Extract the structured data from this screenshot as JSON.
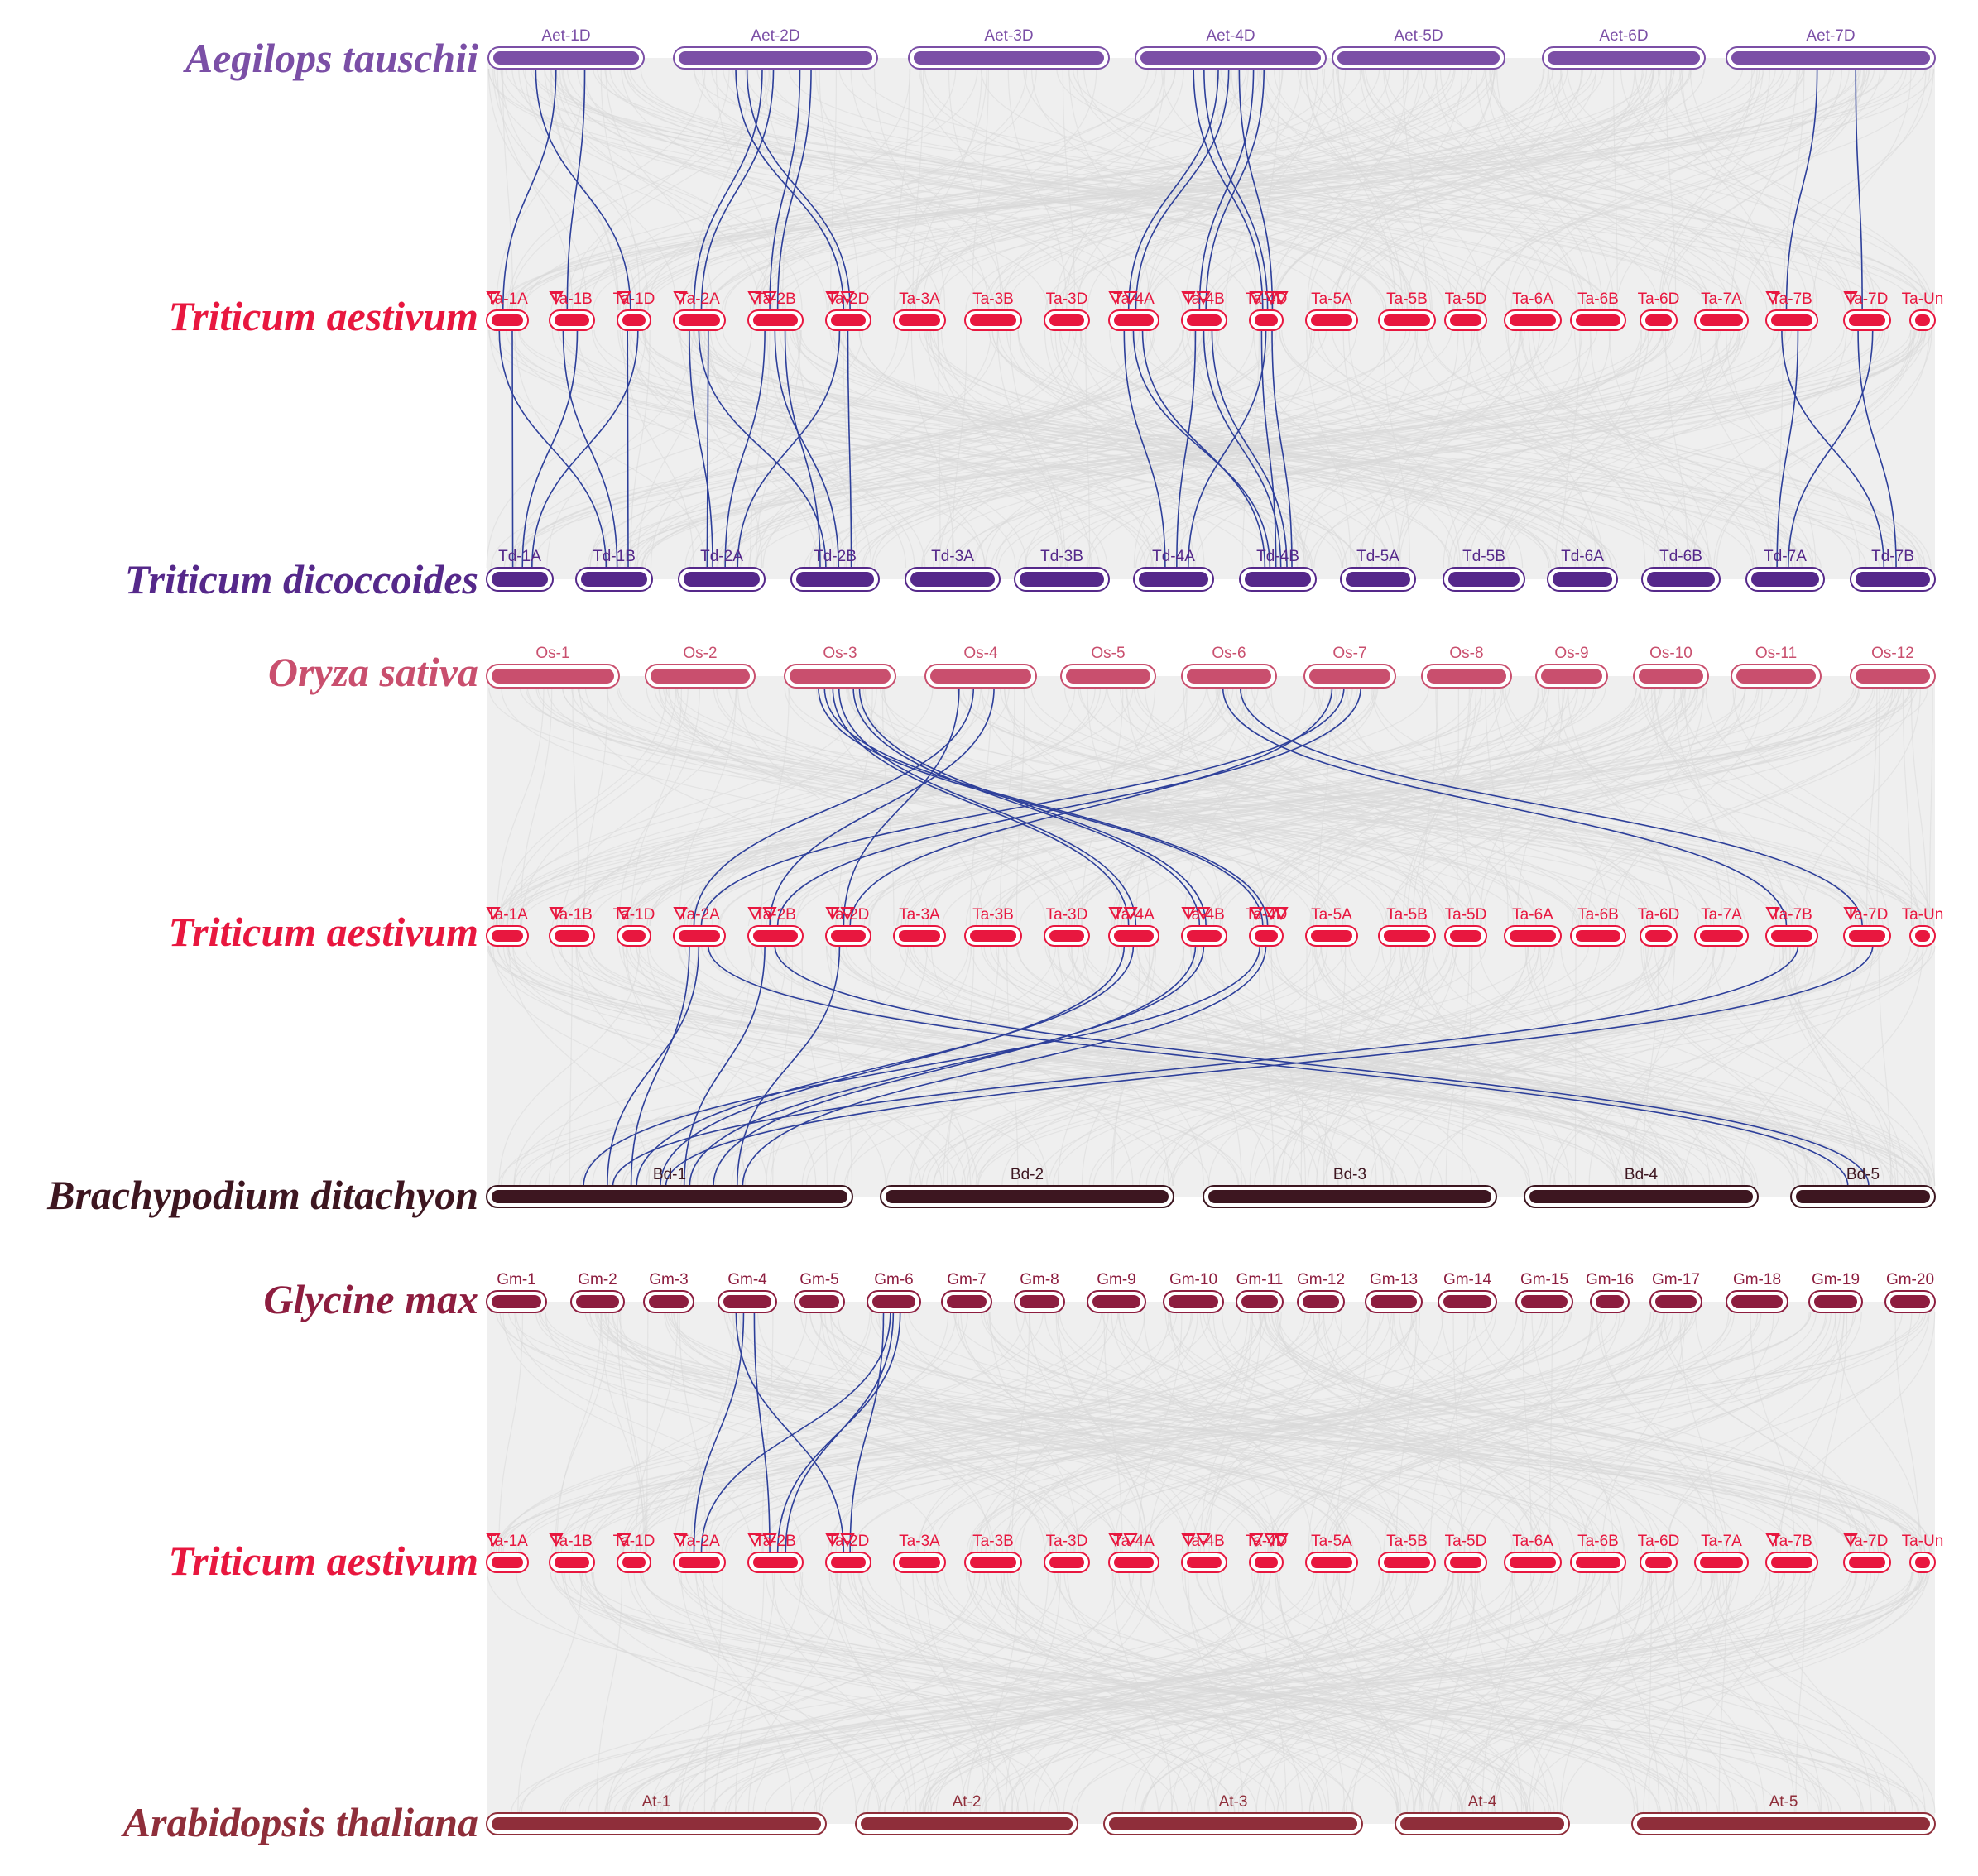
{
  "colors": {
    "background_band": "#efefef",
    "link_gray": "#d9d9d9",
    "link_blue": "#2d3f9a",
    "marker": "#e8173f",
    "Aet": "#7b4fa6",
    "Ta": "#e8173f",
    "Td": "#55288a",
    "Os": "#c94f6e",
    "Bd": "#3d1620",
    "Gm": "#8d1d3f",
    "At": "#8f2e3a"
  },
  "tracks": [
    {
      "id": "aet",
      "species": "Aegilops tauschii",
      "color_key": "Aet",
      "chromosomes": [
        "Aet-1D",
        "Aet-2D",
        "Aet-3D",
        "Aet-4D",
        "Aet-5D",
        "Aet-6D",
        "Aet-7D"
      ]
    },
    {
      "id": "ta1",
      "species": "Triticum aestivum",
      "color_key": "Ta",
      "chromosomes": [
        "Ta-1A",
        "Ta-1B",
        "Ta-1D",
        "Ta-2A",
        "Ta-2B",
        "Ta-2D",
        "Ta-3A",
        "Ta-3B",
        "Ta-3D",
        "Ta-4A",
        "Ta-4B",
        "Ta-4D",
        "Ta-5A",
        "Ta-5B",
        "Ta-5D",
        "Ta-6A",
        "Ta-6B",
        "Ta-6D",
        "Ta-7A",
        "Ta-7B",
        "Ta-7D",
        "Ta-Un"
      ]
    },
    {
      "id": "td",
      "species": "Triticum dicoccoides",
      "color_key": "Td",
      "chromosomes": [
        "Td-1A",
        "Td-1B",
        "Td-2A",
        "Td-2B",
        "Td-3A",
        "Td-3B",
        "Td-4A",
        "Td-4B",
        "Td-5A",
        "Td-5B",
        "Td-6A",
        "Td-6B",
        "Td-7A",
        "Td-7B"
      ]
    },
    {
      "id": "os",
      "species": "Oryza sativa",
      "color_key": "Os",
      "chromosomes": [
        "Os-1",
        "Os-2",
        "Os-3",
        "Os-4",
        "Os-5",
        "Os-6",
        "Os-7",
        "Os-8",
        "Os-9",
        "Os-10",
        "Os-11",
        "Os-12"
      ]
    },
    {
      "id": "ta2",
      "species": "Triticum aestivum",
      "color_key": "Ta",
      "chromosomes": [
        "Ta-1A",
        "Ta-1B",
        "Ta-1D",
        "Ta-2A",
        "Ta-2B",
        "Ta-2D",
        "Ta-3A",
        "Ta-3B",
        "Ta-3D",
        "Ta-4A",
        "Ta-4B",
        "Ta-4D",
        "Ta-5A",
        "Ta-5B",
        "Ta-5D",
        "Ta-6A",
        "Ta-6B",
        "Ta-6D",
        "Ta-7A",
        "Ta-7B",
        "Ta-7D",
        "Ta-Un"
      ]
    },
    {
      "id": "bd",
      "species": "Brachypodium ditachyon",
      "color_key": "Bd",
      "chromosomes": [
        "Bd-1",
        "Bd-2",
        "Bd-3",
        "Bd-4",
        "Bd-5"
      ]
    },
    {
      "id": "gm",
      "species": "Glycine max",
      "color_key": "Gm",
      "chromosomes": [
        "Gm-1",
        "Gm-2",
        "Gm-3",
        "Gm-4",
        "Gm-5",
        "Gm-6",
        "Gm-7",
        "Gm-8",
        "Gm-9",
        "Gm-10",
        "Gm-11",
        "Gm-12",
        "Gm-13",
        "Gm-14",
        "Gm-15",
        "Gm-16",
        "Gm-17",
        "Gm-18",
        "Gm-19",
        "Gm-20"
      ]
    },
    {
      "id": "ta3",
      "species": "Triticum aestivum",
      "color_key": "Ta",
      "chromosomes": [
        "Ta-1A",
        "Ta-1B",
        "Ta-1D",
        "Ta-2A",
        "Ta-2B",
        "Ta-2D",
        "Ta-3A",
        "Ta-3B",
        "Ta-3D",
        "Ta-4A",
        "Ta-4B",
        "Ta-4D",
        "Ta-5A",
        "Ta-5B",
        "Ta-5D",
        "Ta-6A",
        "Ta-6B",
        "Ta-6D",
        "Ta-7A",
        "Ta-7B",
        "Ta-7D",
        "Ta-Un"
      ]
    },
    {
      "id": "at",
      "species": "Arabidopsis thaliana",
      "color_key": "At",
      "chromosomes": [
        "At-1",
        "At-2",
        "At-3",
        "At-4",
        "At-5"
      ]
    }
  ],
  "marked_genes": [
    {
      "chr": "Ta-1A",
      "count": 1
    },
    {
      "chr": "Ta-1B",
      "count": 1
    },
    {
      "chr": "Ta-1D",
      "count": 1
    },
    {
      "chr": "Ta-2A",
      "count": 1
    },
    {
      "chr": "Ta-2B",
      "count": 2
    },
    {
      "chr": "Ta-2D",
      "count": 2
    },
    {
      "chr": "Ta-4A",
      "count": 2
    },
    {
      "chr": "Ta-4B",
      "count": 2
    },
    {
      "chr": "Ta-4D",
      "count": 3
    },
    {
      "chr": "Ta-7B",
      "count": 1
    },
    {
      "chr": "Ta-7D",
      "count": 1
    }
  ],
  "blue_links": [
    [
      "Aet-1D",
      "Ta-1A"
    ],
    [
      "Aet-1D",
      "Ta-1B"
    ],
    [
      "Aet-1D",
      "Ta-1D"
    ],
    [
      "Aet-2D",
      "Ta-2A"
    ],
    [
      "Aet-2D",
      "Ta-2B"
    ],
    [
      "Aet-2D",
      "Ta-2D"
    ],
    [
      "Aet-2D",
      "Ta-2A"
    ],
    [
      "Aet-2D",
      "Ta-2B"
    ],
    [
      "Aet-2D",
      "Ta-2D"
    ],
    [
      "Aet-4D",
      "Ta-4A"
    ],
    [
      "Aet-4D",
      "Ta-4B"
    ],
    [
      "Aet-4D",
      "Ta-4D"
    ],
    [
      "Aet-4D",
      "Ta-4A"
    ],
    [
      "Aet-4D",
      "Ta-4B"
    ],
    [
      "Aet-4D",
      "Ta-4D"
    ],
    [
      "Aet-4D",
      "Ta-4D"
    ],
    [
      "Aet-7D",
      "Ta-7B"
    ],
    [
      "Aet-7D",
      "Ta-7D"
    ],
    [
      "Ta-1A",
      "Td-1A"
    ],
    [
      "Ta-1A",
      "Td-1B"
    ],
    [
      "Ta-1B",
      "Td-1A"
    ],
    [
      "Ta-1B",
      "Td-1B"
    ],
    [
      "Ta-1D",
      "Td-1A"
    ],
    [
      "Ta-1D",
      "Td-1B"
    ],
    [
      "Ta-2A",
      "Td-2A"
    ],
    [
      "Ta-2A",
      "Td-2B"
    ],
    [
      "Ta-2B",
      "Td-2A"
    ],
    [
      "Ta-2B",
      "Td-2B"
    ],
    [
      "Ta-2D",
      "Td-2A"
    ],
    [
      "Ta-2D",
      "Td-2B"
    ],
    [
      "Ta-2B",
      "Td-2B"
    ],
    [
      "Ta-2A",
      "Td-2A"
    ],
    [
      "Ta-4A",
      "Td-4A"
    ],
    [
      "Ta-4A",
      "Td-4B"
    ],
    [
      "Ta-4B",
      "Td-4A"
    ],
    [
      "Ta-4B",
      "Td-4B"
    ],
    [
      "Ta-4D",
      "Td-4A"
    ],
    [
      "Ta-4D",
      "Td-4B"
    ],
    [
      "Ta-4A",
      "Td-4B"
    ],
    [
      "Ta-4D",
      "Td-4B"
    ],
    [
      "Ta-4B",
      "Td-4B"
    ],
    [
      "Ta-7B",
      "Td-7A"
    ],
    [
      "Ta-7B",
      "Td-7B"
    ],
    [
      "Ta-7D",
      "Td-7A"
    ],
    [
      "Ta-7D",
      "Td-7B"
    ],
    [
      "Os-3",
      "Ta-4A"
    ],
    [
      "Os-3",
      "Ta-4B"
    ],
    [
      "Os-3",
      "Ta-4D"
    ],
    [
      "Os-3",
      "Ta-4A"
    ],
    [
      "Os-3",
      "Ta-4B"
    ],
    [
      "Os-3",
      "Ta-4D"
    ],
    [
      "Os-4",
      "Ta-2A"
    ],
    [
      "Os-4",
      "Ta-2B"
    ],
    [
      "Os-4",
      "Ta-2D"
    ],
    [
      "Os-7",
      "Ta-2A"
    ],
    [
      "Os-7",
      "Ta-2B"
    ],
    [
      "Os-7",
      "Ta-2D"
    ],
    [
      "Os-6",
      "Ta-7B"
    ],
    [
      "Os-6",
      "Ta-7D"
    ],
    [
      "Ta-2A",
      "Bd-1"
    ],
    [
      "Ta-2B",
      "Bd-1"
    ],
    [
      "Ta-2D",
      "Bd-1"
    ],
    [
      "Ta-2A",
      "Bd-1"
    ],
    [
      "Ta-4A",
      "Bd-1"
    ],
    [
      "Ta-4B",
      "Bd-1"
    ],
    [
      "Ta-4D",
      "Bd-1"
    ],
    [
      "Ta-4A",
      "Bd-1"
    ],
    [
      "Ta-4B",
      "Bd-1"
    ],
    [
      "Ta-4D",
      "Bd-1"
    ],
    [
      "Ta-7B",
      "Bd-1"
    ],
    [
      "Ta-7D",
      "Bd-1"
    ],
    [
      "Ta-2A",
      "Bd-5"
    ],
    [
      "Ta-2B",
      "Bd-5"
    ],
    [
      "Gm-4",
      "Ta-2A"
    ],
    [
      "Gm-4",
      "Ta-2B"
    ],
    [
      "Gm-4",
      "Ta-2D"
    ],
    [
      "Gm-6",
      "Ta-2A"
    ],
    [
      "Gm-6",
      "Ta-2B"
    ],
    [
      "Gm-6",
      "Ta-2D"
    ],
    [
      "Gm-6",
      "Ta-2B"
    ]
  ]
}
